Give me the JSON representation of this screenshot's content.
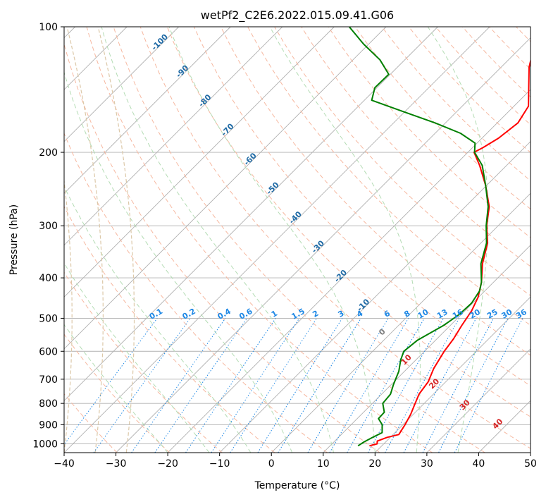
{
  "chart_data": {
    "type": "line",
    "subtype": "skew-t log-p diagram",
    "title": "wetPf2_C2E6.2022.015.09.41.G06",
    "xlabel": "Temperature (°C)",
    "ylabel": "Pressure (hPa)",
    "xlim": [
      -40,
      50
    ],
    "ylim": [
      1050,
      100
    ],
    "x_ticks": [
      -40,
      -30,
      -20,
      -10,
      0,
      10,
      20,
      30,
      40,
      50
    ],
    "x_tick_labels": [
      "−40",
      "−30",
      "−20",
      "−10",
      "0",
      "10",
      "20",
      "30",
      "40",
      "50"
    ],
    "y_ticks": [
      100,
      200,
      300,
      400,
      500,
      600,
      700,
      800,
      900,
      1000
    ],
    "y_tick_labels": [
      "100",
      "200",
      "300",
      "400",
      "500",
      "600",
      "700",
      "800",
      "900",
      "1000"
    ],
    "grid": true,
    "series": [
      {
        "name": "temperature",
        "color": "#ff0000",
        "points": [
          [
            1011,
            17.6
          ],
          [
            1000,
            18.7
          ],
          [
            985,
            18.2
          ],
          [
            965,
            19.4
          ],
          [
            950,
            21.1
          ],
          [
            900,
            20.4
          ],
          [
            850,
            19.5
          ],
          [
            810,
            18.5
          ],
          [
            760,
            17.2
          ],
          [
            710,
            16.6
          ],
          [
            660,
            15.1
          ],
          [
            600,
            13.8
          ],
          [
            560,
            13.2
          ],
          [
            520,
            12.2
          ],
          [
            480,
            11.3
          ],
          [
            445,
            9.9
          ],
          [
            410,
            7.7
          ],
          [
            370,
            4.3
          ],
          [
            330,
            1.3
          ],
          [
            300,
            -2.2
          ],
          [
            270,
            -5.4
          ],
          [
            240,
            -10.2
          ],
          [
            215,
            -15.2
          ],
          [
            200,
            -18.8
          ],
          [
            195,
            -18.0
          ],
          [
            185,
            -16.8
          ],
          [
            170,
            -16.0
          ],
          [
            155,
            -17.2
          ],
          [
            140,
            -20.7
          ],
          [
            125,
            -24.6
          ],
          [
            110,
            -28.0
          ],
          [
            100,
            -31.8
          ]
        ]
      },
      {
        "name": "dewpoint",
        "color": "#008000",
        "points": [
          [
            1011,
            15.4
          ],
          [
            990,
            15.8
          ],
          [
            965,
            16.6
          ],
          [
            940,
            17.5
          ],
          [
            900,
            16.0
          ],
          [
            870,
            14.1
          ],
          [
            840,
            14.0
          ],
          [
            800,
            12.0
          ],
          [
            760,
            11.7
          ],
          [
            720,
            10.4
          ],
          [
            670,
            8.9
          ],
          [
            630,
            7.1
          ],
          [
            600,
            6.0
          ],
          [
            565,
            6.5
          ],
          [
            520,
            8.7
          ],
          [
            490,
            9.6
          ],
          [
            460,
            9.8
          ],
          [
            430,
            9.0
          ],
          [
            410,
            7.7
          ],
          [
            370,
            4.0
          ],
          [
            330,
            1.1
          ],
          [
            300,
            -2.3
          ],
          [
            270,
            -5.6
          ],
          [
            240,
            -10.2
          ],
          [
            215,
            -14.7
          ],
          [
            200,
            -18.7
          ],
          [
            190,
            -20.4
          ],
          [
            180,
            -25.1
          ],
          [
            170,
            -32.0
          ],
          [
            160,
            -40.1
          ],
          [
            150,
            -48.6
          ],
          [
            140,
            -50.4
          ],
          [
            130,
            -50.3
          ],
          [
            120,
            -54.8
          ],
          [
            110,
            -61.0
          ],
          [
            100,
            -67.1
          ]
        ]
      }
    ],
    "background_lines": {
      "isotherms": "solid gray, skewed, every 10 °C",
      "isobars": "solid gray, horizontal at each pressure tick",
      "dry_adiabats": "dashed orange-red",
      "moist_adiabats": "dashed green",
      "mixing_ratio_lines": "dotted blue",
      "wet_bulb_potential_temperature_lines": "dashed tan"
    },
    "annotations": {
      "mixing_ratio_labels": [
        "0.1",
        "0.2",
        "0.4",
        "0.6",
        "1",
        "1.5",
        "2",
        "3",
        "4",
        "6",
        "8",
        "10",
        "13",
        "16",
        "20",
        "25",
        "30",
        "36"
      ],
      "skewed_isotherm_labels": [
        "-100",
        "-90",
        "-80",
        "-70",
        "-60",
        "-50",
        "-40",
        "-30",
        "-20",
        "-10"
      ],
      "wet_bulb_labels": [
        "0",
        "10",
        "20",
        "30",
        "40"
      ]
    }
  },
  "style": {
    "temperature_color": "#ff0000",
    "dewpoint_color": "#008000",
    "grid_color": "#b0b0b0",
    "dry_adiabat_color": "#f6b8a0",
    "moist_adiabat_color": "#b4dcb4",
    "mixing_ratio_color": "#1e88e5",
    "isotherm_label_color": "#1f6aa5",
    "wet_bulb_color": "#dcc8a8",
    "wet_bulb_label_color": "#d62728",
    "zero_label_color": "#808080"
  }
}
